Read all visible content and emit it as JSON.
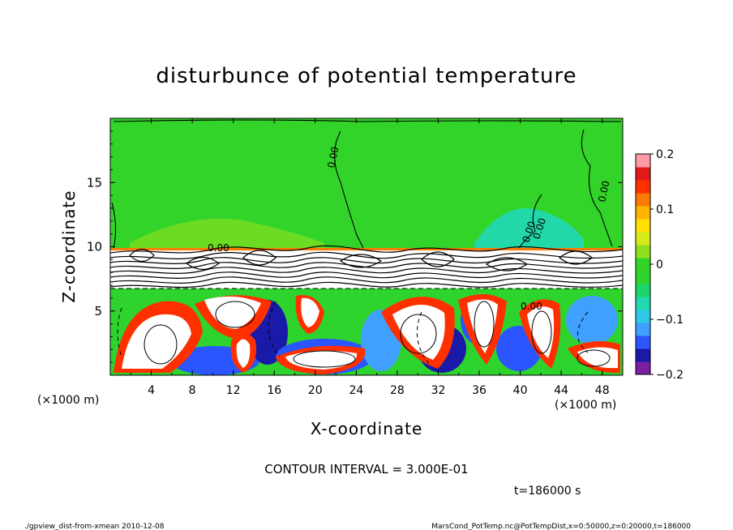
{
  "chart_data": {
    "type": "heatmap",
    "title": "disturbunce of potential temperature",
    "xlabel": "X-coordinate",
    "ylabel": "Z-coordinate",
    "x_unit": "(×1000 m)",
    "y_unit": "(×1000 m)",
    "xlim": [
      0,
      50
    ],
    "ylim": [
      0,
      20
    ],
    "x_ticks": [
      "4",
      "8",
      "12",
      "16",
      "20",
      "24",
      "28",
      "32",
      "36",
      "40",
      "44",
      "48"
    ],
    "y_ticks": [
      "5",
      "10",
      "15"
    ],
    "colorbar": {
      "range": [
        -0.2,
        0.2
      ],
      "tick_labels": [
        "0.2",
        "0.1",
        "0",
        "−0.1",
        "−0.2"
      ],
      "colors": [
        "#7a1fa2",
        "#1a1aa8",
        "#2a55ff",
        "#3fa0ff",
        "#2ec8e6",
        "#22d8b0",
        "#1fd46a",
        "#2ed32e",
        "#33d429",
        "#8ee01c",
        "#d6ea18",
        "#ffe000",
        "#ffb400",
        "#ff7a00",
        "#ff3000",
        "#e01a1a",
        "#ff9aa6"
      ]
    },
    "contour_labels": [
      "0.00",
      "0.00",
      "0.00",
      "0.00",
      "0.00",
      "0.00"
    ],
    "contour_interval": "CONTOUR INTERVAL = 3.000E-01",
    "time": "t=186000 s"
  },
  "footer": {
    "left": "./gpview_dist-from-xmean  2010-12-08",
    "right": "MarsCond_PotTemp.nc@PotTempDist,x=0:50000,z=0:20000,t=186000"
  }
}
